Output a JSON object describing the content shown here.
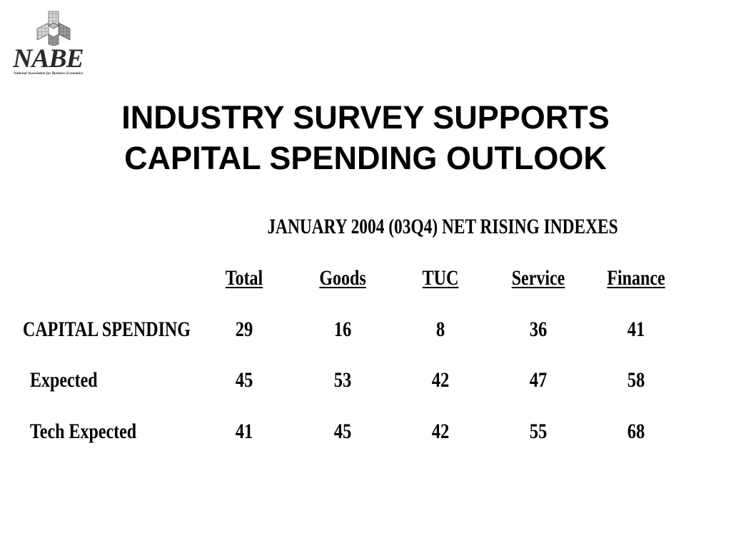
{
  "logo": {
    "name": "NABE",
    "subtitle": "National Association for Business Economics"
  },
  "title": {
    "line1": "INDUSTRY SURVEY SUPPORTS",
    "line2": "CAPITAL SPENDING OUTLOOK"
  },
  "table": {
    "title": "JANUARY 2004 (03Q4) NET RISING INDEXES",
    "columns": [
      "Total",
      "Goods",
      "TUC",
      "Service",
      "Finance"
    ],
    "rows": [
      {
        "label": "CAPITAL SPENDING",
        "values": [
          "29",
          "16",
          "8",
          "36",
          "41"
        ]
      },
      {
        "label": "Expected",
        "values": [
          "45",
          "53",
          "42",
          "47",
          "58"
        ]
      },
      {
        "label": "Tech Expected",
        "values": [
          "41",
          "45",
          "42",
          "55",
          "68"
        ]
      }
    ]
  }
}
